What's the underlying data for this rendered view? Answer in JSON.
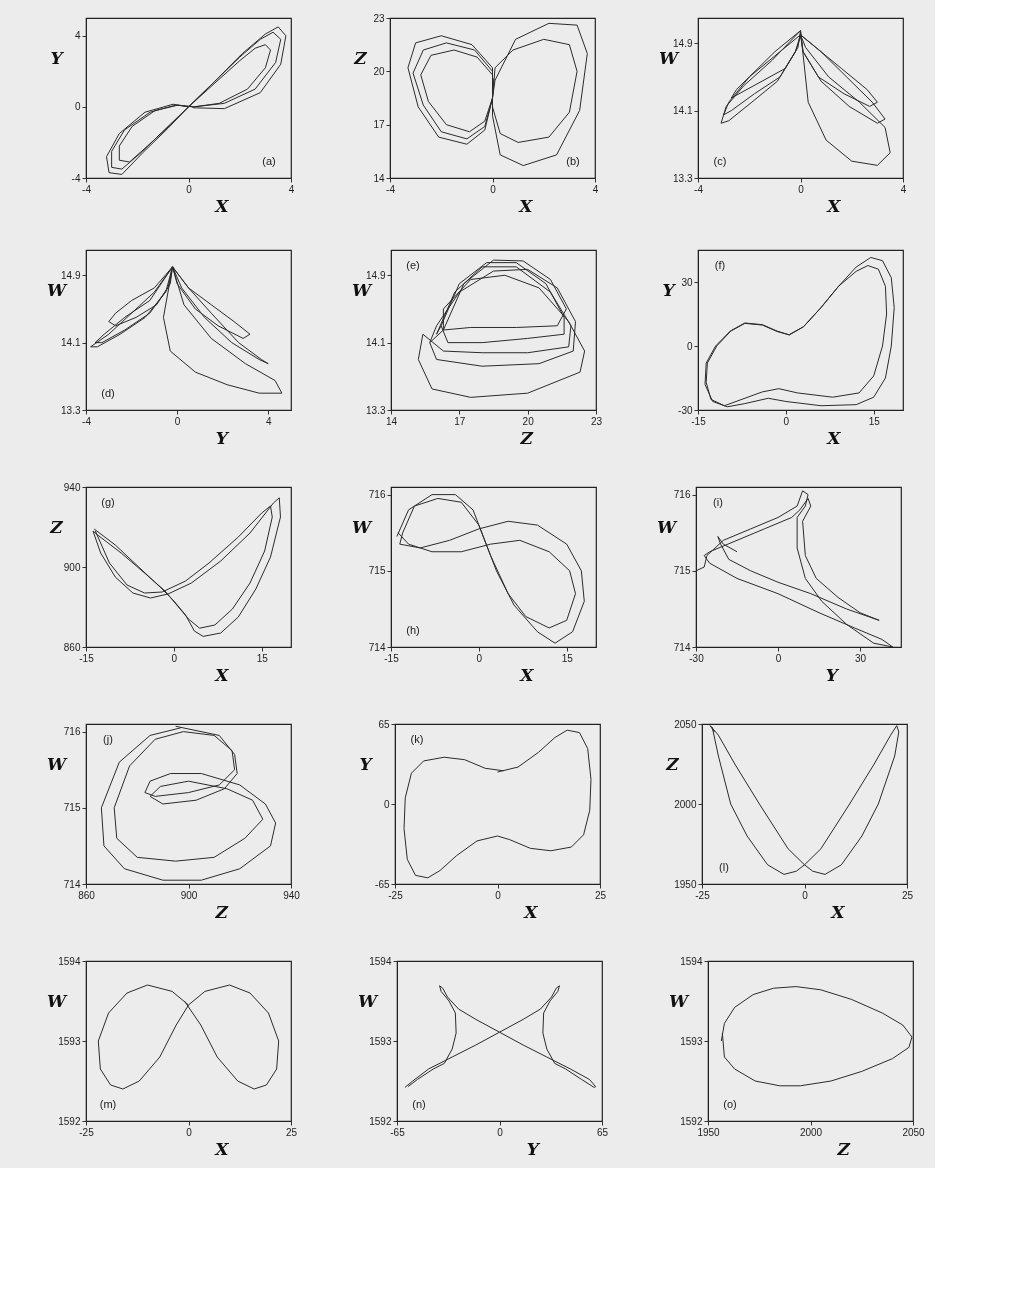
{
  "chart_data": [
    {
      "type": "line",
      "xlabel": "X",
      "ylabel": "Y",
      "annotations": [
        "(a)"
      ],
      "xlim": [
        -4,
        4
      ],
      "ylim": [
        -4,
        5
      ],
      "xticks": [
        -4,
        0,
        4
      ],
      "yticks": [
        -4,
        0,
        4
      ],
      "series": [
        {
          "color": "#2b2b2b",
          "x": [
            0,
            1,
            2,
            2.6,
            3,
            3.2,
            3,
            2.3,
            1.2,
            0.2,
            -0.5,
            -1.5,
            -2.5,
            -3,
            -3,
            -2.6,
            -1.8,
            -0.8,
            0,
            -0.6,
            -1.7,
            -2.7,
            -3.2,
            -3.1,
            -2.6,
            -1.8,
            -0.8,
            0,
            1,
            2,
            2.8,
            3.3,
            3.6,
            3.4,
            2.6,
            1.4,
            0.2,
            -0.4,
            -1.3,
            -2.2,
            -2.7,
            -2.7,
            -2.3,
            -1.6,
            -0.7,
            0,
            1,
            2.1,
            3,
            3.5,
            3.8,
            3.6,
            2.8,
            1.4,
            0.2,
            0.08
          ],
          "values": [
            0,
            1.3,
            2.6,
            3.3,
            3.5,
            3.2,
            2.2,
            1.0,
            0.2,
            0,
            0.1,
            -0.3,
            -1.3,
            -2.5,
            -3.4,
            -3.5,
            -2.5,
            -1.1,
            0,
            0.15,
            -0.3,
            -1.5,
            -2.8,
            -3.7,
            -3.8,
            -2.6,
            -1.2,
            0,
            1.4,
            2.8,
            3.8,
            4.2,
            3.8,
            2.5,
            1.0,
            0.2,
            0,
            0.1,
            -0.2,
            -1.1,
            -2.2,
            -3.0,
            -3.1,
            -2.2,
            -1.0,
            0,
            1.4,
            3.0,
            4.1,
            4.5,
            4.0,
            2.4,
            0.8,
            -0.1,
            -0.05,
            0.06
          ]
        }
      ]
    },
    {
      "type": "line",
      "xlabel": "X",
      "ylabel": "Z",
      "annotations": [
        "(b)"
      ],
      "xlim": [
        -4,
        4
      ],
      "ylim": [
        14,
        23
      ],
      "xticks": [
        -4,
        0,
        4
      ],
      "yticks": [
        14,
        17,
        20,
        23
      ],
      "series": [
        {
          "color": "#2b2b2b",
          "x": [
            0,
            -0.6,
            -1.5,
            -2.4,
            -2.8,
            -2.5,
            -1.8,
            -0.9,
            -0.3,
            0,
            0.1,
            0.8,
            2,
            3,
            3.3,
            3,
            2.2,
            1,
            0.3,
            0,
            0,
            -0.8,
            -2,
            -3,
            -3.3,
            -2.9,
            -2.1,
            -1,
            -0.3,
            0,
            0.1,
            0.9,
            2.2,
            3.3,
            3.7,
            3.4,
            2.5,
            1.2,
            0.3,
            0,
            0,
            -0.7,
            -1.8,
            -2.7,
            -3.1,
            -2.7,
            -2,
            -1,
            -0.3,
            0,
            0.05
          ],
          "values": [
            19.8,
            20.8,
            21.2,
            20.9,
            19.8,
            18.3,
            17,
            16.6,
            17.2,
            18.5,
            20.2,
            21.2,
            21.8,
            21.5,
            20,
            17.7,
            16.3,
            16,
            16.5,
            18,
            20.2,
            21.5,
            22,
            21.6,
            20.2,
            18,
            16.3,
            15.9,
            16.7,
            18.5,
            19.5,
            21.8,
            22.7,
            22.6,
            21,
            17.8,
            15.3,
            14.7,
            15.3,
            17.5,
            20,
            21.2,
            21.6,
            21.2,
            19.9,
            18.1,
            16.6,
            16.2,
            16.9,
            18.5,
            19.6
          ]
        }
      ]
    },
    {
      "type": "line",
      "xlabel": "X",
      "ylabel": "W",
      "annotations": [
        "(c)"
      ],
      "xlim": [
        -4,
        4
      ],
      "ylim": [
        13.3,
        15.2
      ],
      "xticks": [
        -4,
        0,
        4
      ],
      "yticks": [
        13.3,
        14.1,
        14.9
      ],
      "series": [
        {
          "color": "#2b2b2b",
          "x": [
            0,
            -1,
            -2,
            -2.8,
            -3,
            -2.7,
            -1.8,
            -0.8,
            -0.2,
            0,
            0.6,
            1.6,
            2.6,
            3,
            2.7,
            1.7,
            0.7,
            0.1,
            0,
            -1,
            -2,
            -2.5,
            -2.7,
            -2.4,
            -1.5,
            -0.6,
            -0.1,
            0,
            0.3,
            1.0,
            2.0,
            3.0,
            3.5,
            3.3,
            2.3,
            1.1,
            0.2,
            0,
            0.8,
            1.8,
            2.8,
            3.3,
            3.0,
            1.9,
            0.8,
            0.1,
            0,
            -1.1,
            -2.2,
            -2.9,
            -3.1,
            -2.8,
            -1.9,
            -0.9,
            -0.2,
            0.03
          ],
          "values": [
            15.05,
            14.8,
            14.5,
            14.2,
            14.05,
            14.1,
            14.3,
            14.5,
            14.8,
            15.0,
            14.85,
            14.6,
            14.35,
            14.2,
            14.15,
            14.3,
            14.5,
            14.8,
            15.0,
            14.75,
            14.5,
            14.35,
            14.25,
            14.3,
            14.45,
            14.6,
            14.85,
            15.05,
            14.2,
            13.75,
            13.5,
            13.45,
            13.6,
            13.9,
            14.2,
            14.5,
            14.85,
            15.0,
            14.8,
            14.5,
            14.2,
            14.0,
            13.95,
            14.15,
            14.45,
            14.8,
            15.05,
            14.7,
            14.4,
            14.15,
            13.95,
            13.98,
            14.2,
            14.45,
            14.8,
            15.0
          ]
        }
      ]
    },
    {
      "type": "line",
      "xlabel": "Y",
      "ylabel": "W",
      "annotations": [
        "(d)"
      ],
      "xlim": [
        -4,
        5
      ],
      "ylim": [
        13.3,
        15.2
      ],
      "xticks": [
        -4,
        0,
        4
      ],
      "yticks": [
        13.3,
        14.1,
        14.9
      ],
      "series": [
        {
          "color": "#2b2b2b",
          "x": [
            -0.2,
            -1,
            -2,
            -3,
            -3.8,
            -3.5,
            -2.5,
            -1.4,
            -0.5,
            -0.2,
            0.5,
            1.5,
            2.5,
            3.2,
            2.9,
            1.8,
            0.8,
            0,
            -0.2,
            -1,
            -2,
            -2.7,
            -3,
            -2.7,
            -1.8,
            -0.9,
            -0.3,
            -0.2,
            -0.6,
            -0.3,
            0.8,
            2.2,
            3.6,
            4.6,
            4.3,
            3,
            1.5,
            0.3,
            -0.2,
            0.5,
            1.5,
            2.7,
            3.7,
            4,
            3.6,
            2.4,
            1.2,
            0.2,
            -0.2,
            -1.2,
            -2.3,
            -3.2,
            -3.6,
            -3.3,
            -2.3,
            -1.2,
            -0.4,
            -0.25
          ],
          "values": [
            15.0,
            14.7,
            14.45,
            14.2,
            14.05,
            14.05,
            14.2,
            14.4,
            14.7,
            15.0,
            14.75,
            14.55,
            14.35,
            14.2,
            14.15,
            14.3,
            14.5,
            14.8,
            15.0,
            14.75,
            14.6,
            14.45,
            14.35,
            14.3,
            14.4,
            14.55,
            14.8,
            15.0,
            14.4,
            14.0,
            13.75,
            13.6,
            13.5,
            13.5,
            13.65,
            13.85,
            14.15,
            14.55,
            15.0,
            14.75,
            14.45,
            14.1,
            13.9,
            13.85,
            13.9,
            14.1,
            14.4,
            14.75,
            15.0,
            14.6,
            14.4,
            14.2,
            14.1,
            14.1,
            14.25,
            14.45,
            14.75,
            14.95
          ]
        }
      ]
    },
    {
      "type": "line",
      "xlabel": "Z",
      "ylabel": "W",
      "annotations": [
        "(e)"
      ],
      "xlim": [
        14,
        23
      ],
      "ylim": [
        13.3,
        15.2
      ],
      "xticks": [
        14,
        17,
        20,
        23
      ],
      "yticks": [
        13.3,
        14.1,
        14.9
      ],
      "series": [
        {
          "color": "#2b2b2b",
          "x": [
            16.2,
            17,
            18.2,
            19.5,
            20.8,
            21.6,
            21.6,
            20,
            18,
            16.5,
            16.2,
            16,
            16.8,
            18,
            19.5,
            21,
            21.9,
            21.8,
            20,
            18,
            16.3,
            15.4,
            15.2,
            15.8,
            17.5,
            20,
            22.3,
            22.5,
            21.8,
            20.5,
            19,
            17.5,
            16.3,
            16.3,
            17.2,
            18.5,
            19.8,
            21,
            21.7,
            21.3,
            19.5,
            17.5,
            16.3,
            15.7,
            16,
            17,
            18.5,
            20,
            21.3,
            22.1,
            22,
            20.5,
            18,
            16,
            15.7
          ],
          "values": [
            14.3,
            14.8,
            15.05,
            15.05,
            14.8,
            14.4,
            14.2,
            14.15,
            14.1,
            14.1,
            14.3,
            14.2,
            14.7,
            15.0,
            15.0,
            14.7,
            14.3,
            14.05,
            13.98,
            13.98,
            14.0,
            14.2,
            13.9,
            13.55,
            13.45,
            13.5,
            13.75,
            14.0,
            14.35,
            14.75,
            14.9,
            14.85,
            14.5,
            14.25,
            14.8,
            15.08,
            15.07,
            14.85,
            14.5,
            14.3,
            14.28,
            14.28,
            14.25,
            14.1,
            14.3,
            14.7,
            14.95,
            14.97,
            14.75,
            14.35,
            14.0,
            13.85,
            13.82,
            13.9,
            14.1
          ]
        }
      ]
    },
    {
      "type": "line",
      "xlabel": "X",
      "ylabel": "Y",
      "annotations": [
        "(f)"
      ],
      "xlim": [
        -15,
        20
      ],
      "ylim": [
        -30,
        45
      ],
      "xticks": [
        -15,
        0,
        15
      ],
      "yticks": [
        -30,
        0,
        30
      ],
      "series": [
        {
          "color": "#2b2b2b",
          "x": [
            0.6,
            3,
            6,
            9,
            12,
            14.5,
            16.5,
            18,
            18.5,
            18,
            17,
            15,
            12,
            6,
            0,
            -3,
            -7,
            -10,
            -12.5,
            -13.8,
            -13.6,
            -12,
            -9.5,
            -7,
            -4,
            -1.5,
            0.6,
            3,
            6,
            9,
            12,
            14,
            15.8,
            17,
            17.2,
            16.5,
            15,
            12.5,
            8,
            2,
            -1.2,
            -4,
            -8,
            -10.5,
            -12.8,
            -13.6,
            -13.4,
            -11.8,
            -9.4,
            -7,
            -4,
            -1.5,
            0.6
          ],
          "values": [
            5.4,
            9,
            18,
            28,
            37,
            41.5,
            40,
            32,
            18,
            0,
            -15,
            -24,
            -27.5,
            -28,
            -26,
            -24.5,
            -27,
            -28.5,
            -26,
            -18,
            -8,
            0,
            7,
            10.8,
            10,
            7,
            5.2,
            9,
            18,
            28,
            35,
            37.7,
            36,
            28,
            15,
            0,
            -14,
            -22,
            -24,
            -22,
            -20,
            -21.5,
            -25.5,
            -28,
            -25,
            -17,
            -8,
            0,
            7,
            10.6,
            9.8,
            6.8,
            5.2
          ]
        }
      ]
    },
    {
      "type": "line",
      "xlabel": "X",
      "ylabel": "Z",
      "annotations": [
        "(g)"
      ],
      "xlim": [
        -15,
        20
      ],
      "ylim": [
        860,
        940
      ],
      "xticks": [
        -15,
        0,
        15
      ],
      "yticks": [
        860,
        900,
        940
      ],
      "series": [
        {
          "color": "#2b2b2b",
          "x": [
            -13.6,
            -10,
            -6,
            -2,
            0,
            2,
            3.5,
            5,
            8,
            11,
            14,
            16.5,
            18.2,
            18,
            17,
            13,
            8,
            3,
            -1,
            -4,
            -7,
            -10,
            -12.5,
            -13.8,
            -13,
            -9,
            -5,
            -1.5,
            0.5,
            2.5,
            4.4,
            7,
            10,
            13,
            15.5,
            16.8,
            16.5,
            15,
            11,
            6,
            2,
            -2,
            -5,
            -8,
            -11,
            -13.4
          ],
          "values": [
            919,
            911,
            900,
            889,
            883,
            876,
            868,
            865.3,
            867,
            875,
            889,
            905,
            925,
            934.6,
            932,
            917,
            903,
            892,
            886.5,
            884.5,
            887,
            895,
            907,
            918,
            916,
            907,
            897,
            888,
            881,
            874,
            869.4,
            871,
            879,
            892,
            908,
            925,
            930.5,
            927,
            915,
            902,
            893,
            887.5,
            887,
            891,
            902,
            918
          ]
        }
      ]
    },
    {
      "type": "line",
      "xlabel": "X",
      "ylabel": "W",
      "annotations": [
        "(h)"
      ],
      "xlim": [
        -15,
        20
      ],
      "ylim": [
        714,
        716.1
      ],
      "xticks": [
        -15,
        0,
        15
      ],
      "yticks": [
        714,
        715,
        716
      ],
      "series": [
        {
          "color": "#2b2b2b",
          "x": [
            -14,
            -12,
            -8,
            -4,
            -1,
            1,
            3,
            6,
            10,
            13,
            16,
            18,
            17.5,
            15,
            10,
            5,
            0,
            -5,
            -10,
            -13.5,
            -13,
            -11,
            -7,
            -3,
            0,
            2,
            5,
            8,
            12,
            15,
            16.5,
            15.5,
            12,
            7,
            2,
            -3,
            -8,
            -12,
            -13.8
          ],
          "values": [
            715.45,
            715.8,
            716,
            716,
            715.8,
            715.4,
            715.0,
            714.55,
            714.2,
            714.05,
            714.2,
            714.6,
            715.0,
            715.35,
            715.6,
            715.65,
            715.55,
            715.4,
            715.3,
            715.35,
            715.5,
            715.85,
            715.95,
            715.9,
            715.6,
            715.2,
            714.7,
            714.4,
            714.25,
            714.35,
            714.7,
            715.0,
            715.25,
            715.4,
            715.35,
            715.25,
            715.25,
            715.35,
            715.5
          ]
        }
      ]
    },
    {
      "type": "line",
      "xlabel": "Y",
      "ylabel": "W",
      "annotations": [
        "(i)"
      ],
      "xlim": [
        -30,
        45
      ],
      "ylim": [
        714,
        716.1
      ],
      "xticks": [
        -30,
        0,
        30
      ],
      "yticks": [
        714,
        715,
        716
      ],
      "series": [
        {
          "color": "#2b2b2b",
          "x": [
            -30,
            -27,
            -26,
            -20,
            -10,
            0,
            7,
            9,
            11,
            10,
            7,
            7,
            10,
            16,
            25,
            35,
            42,
            38,
            28,
            15,
            0,
            -15,
            -25,
            -27,
            -25,
            -15,
            -5,
            5,
            8,
            11,
            12,
            9,
            10,
            14,
            22,
            30,
            37,
            33,
            25,
            12,
            0,
            -10,
            -18,
            -21,
            -22,
            -20,
            -15
          ],
          "values": [
            715.0,
            715.05,
            715.2,
            715.4,
            715.55,
            715.7,
            715.85,
            716.05,
            716.0,
            715.85,
            715.7,
            715.3,
            714.9,
            714.6,
            714.3,
            714.05,
            714.0,
            714.1,
            714.25,
            714.45,
            714.7,
            714.9,
            715.1,
            715.2,
            715.25,
            715.4,
            715.55,
            715.7,
            715.8,
            715.95,
            715.85,
            715.65,
            715.2,
            714.9,
            714.65,
            714.45,
            714.35,
            714.4,
            714.5,
            714.7,
            714.85,
            715.0,
            715.15,
            715.35,
            715.45,
            715.35,
            715.25
          ]
        }
      ]
    },
    {
      "type": "line",
      "xlabel": "Z",
      "ylabel": "W",
      "annotations": [
        "(j)"
      ],
      "xlim": [
        860,
        940
      ],
      "ylim": [
        714,
        716.1
      ],
      "xticks": [
        860,
        900,
        940
      ],
      "yticks": [
        714,
        715,
        716
      ],
      "series": [
        {
          "color": "#2b2b2b",
          "x": [
            897,
            885,
            873,
            866,
            867,
            875,
            890,
            905,
            920,
            932,
            934,
            930,
            920,
            905,
            893,
            885,
            883,
            887,
            900,
            912,
            918,
            917,
            910,
            898,
            887,
            877,
            871,
            872,
            880,
            895,
            910,
            922,
            929,
            925,
            915,
            900,
            889,
            885,
            890,
            903,
            914,
            919,
            918,
            912,
            895
          ],
          "values": [
            716.05,
            715.95,
            715.6,
            715,
            714.5,
            714.2,
            714.05,
            714.05,
            714.2,
            714.5,
            714.8,
            715.05,
            715.3,
            715.45,
            715.45,
            715.35,
            715.2,
            715.15,
            715.2,
            715.3,
            715.5,
            715.75,
            715.95,
            716.0,
            715.9,
            715.55,
            715.0,
            714.6,
            714.35,
            714.3,
            714.35,
            714.6,
            714.85,
            715.1,
            715.25,
            715.35,
            715.28,
            715.15,
            715.05,
            715.1,
            715.25,
            715.45,
            715.7,
            715.95,
            716.07
          ]
        }
      ]
    },
    {
      "type": "line",
      "xlabel": "X",
      "ylabel": "Y",
      "annotations": [
        "(k)"
      ],
      "xlim": [
        -25,
        25
      ],
      "ylim": [
        -65,
        65
      ],
      "xticks": [
        -25,
        0,
        25
      ],
      "yticks": [
        -65,
        0,
        65
      ],
      "series": [
        {
          "color": "#2b2b2b",
          "x": [
            0,
            5,
            10,
            14,
            17,
            20,
            22,
            22.8,
            22.5,
            21,
            18,
            13,
            8,
            3,
            0,
            -5,
            -10,
            -14,
            -17,
            -20,
            -22,
            -22.8,
            -22.5,
            -21,
            -18,
            -13,
            -8,
            -3,
            1.5
          ],
          "values": [
            26,
            30,
            42,
            54,
            60,
            58,
            45,
            20,
            -5,
            -25,
            -35,
            -38,
            -36,
            -29,
            -26,
            -30,
            -42,
            -54,
            -60,
            -58,
            -45,
            -20,
            5,
            25,
            35,
            38,
            36,
            29,
            27
          ]
        }
      ]
    },
    {
      "type": "line",
      "xlabel": "X",
      "ylabel": "Z",
      "annotations": [
        "(l)"
      ],
      "xlim": [
        -25,
        25
      ],
      "ylim": [
        1950,
        2050
      ],
      "xticks": [
        -25,
        0,
        25
      ],
      "yticks": [
        1950,
        2000,
        2050
      ],
      "series": [
        {
          "color": "#2b2b2b",
          "x": [
            -22.5,
            -21,
            -18,
            -14,
            -9,
            -5,
            -2,
            0,
            4,
            11,
            17,
            21,
            22.5,
            23,
            22,
            18,
            14,
            9,
            5,
            2,
            0,
            -4,
            -11,
            -17,
            -21,
            -23,
            -22
          ],
          "values": [
            2048,
            2030,
            2000,
            1980,
            1962,
            1956,
            1958,
            1962,
            1972,
            2000,
            2025,
            2043,
            2049,
            2045,
            2030,
            2000,
            1980,
            1962,
            1956,
            1958,
            1962,
            1972,
            2000,
            2025,
            2043,
            2049,
            2045
          ]
        }
      ]
    },
    {
      "type": "line",
      "xlabel": "X",
      "ylabel": "W",
      "annotations": [
        "(m)"
      ],
      "xlim": [
        -25,
        25
      ],
      "ylim": [
        1592,
        1594
      ],
      "xticks": [
        -25,
        0,
        25
      ],
      "yticks": [
        1592,
        1593,
        1594
      ],
      "series": [
        {
          "color": "#2b2b2b",
          "x": [
            0,
            -4,
            -10,
            -15,
            -19.5,
            -22,
            -21.5,
            -19,
            -16,
            -12,
            -7,
            -3,
            0,
            4,
            10,
            15,
            19.5,
            22,
            21.5,
            19,
            16,
            12,
            7,
            3,
            -1
          ],
          "values": [
            1593.45,
            1593.62,
            1593.7,
            1593.6,
            1593.35,
            1593.0,
            1592.65,
            1592.45,
            1592.4,
            1592.5,
            1592.8,
            1593.2,
            1593.45,
            1593.62,
            1593.7,
            1593.6,
            1593.35,
            1593.0,
            1592.65,
            1592.45,
            1592.4,
            1592.5,
            1592.8,
            1593.2,
            1593.5
          ]
        }
      ]
    },
    {
      "type": "line",
      "xlabel": "Y",
      "ylabel": "W",
      "annotations": [
        "(n)"
      ],
      "xlim": [
        -65,
        65
      ],
      "ylim": [
        1592,
        1594
      ],
      "xticks": [
        -65,
        0,
        65
      ],
      "yticks": [
        1592,
        1593,
        1594
      ],
      "series": [
        {
          "color": "#2b2b2b",
          "x": [
            -60,
            -55,
            -45,
            -30,
            -15,
            0,
            15,
            26,
            33,
            36,
            38,
            37,
            32,
            28,
            27.5,
            30,
            35,
            42,
            52,
            60,
            61,
            57,
            45,
            30,
            15,
            0,
            -15,
            -26,
            -33,
            -36,
            -38,
            -37,
            -32,
            -28,
            -27.5,
            -30,
            -35,
            -42,
            -52,
            -58
          ],
          "values": [
            1592.42,
            1592.5,
            1592.65,
            1592.8,
            1592.95,
            1593.11,
            1593.27,
            1593.4,
            1593.55,
            1593.66,
            1593.69,
            1593.62,
            1593.5,
            1593.35,
            1593.1,
            1592.9,
            1592.72,
            1592.65,
            1592.52,
            1592.42,
            1592.43,
            1592.52,
            1592.65,
            1592.8,
            1592.95,
            1593.11,
            1593.27,
            1593.4,
            1593.55,
            1593.66,
            1593.69,
            1593.62,
            1593.5,
            1593.35,
            1593.1,
            1592.9,
            1592.72,
            1592.65,
            1592.52,
            1592.43
          ]
        }
      ]
    },
    {
      "type": "line",
      "xlabel": "Z",
      "ylabel": "W",
      "annotations": [
        "(o)"
      ],
      "xlim": [
        1950,
        2050
      ],
      "ylim": [
        1592,
        1594
      ],
      "xticks": [
        1950,
        2000,
        2050
      ],
      "yticks": [
        1592,
        1593,
        1594
      ],
      "series": [
        {
          "color": "#2b2b2b",
          "x": [
            1956.5,
            1958,
            1963,
            1972,
            1982,
            1993,
            2005,
            2020,
            2035,
            2045,
            2049.5,
            2048,
            2040,
            2025,
            2010,
            1995,
            1985,
            1973,
            1963,
            1958,
            1957
          ],
          "values": [
            1593.0,
            1593.22,
            1593.42,
            1593.58,
            1593.66,
            1593.68,
            1593.64,
            1593.52,
            1593.35,
            1593.2,
            1593.05,
            1592.92,
            1592.78,
            1592.62,
            1592.5,
            1592.44,
            1592.44,
            1592.5,
            1592.65,
            1592.8,
            1593.1
          ]
        }
      ]
    }
  ]
}
